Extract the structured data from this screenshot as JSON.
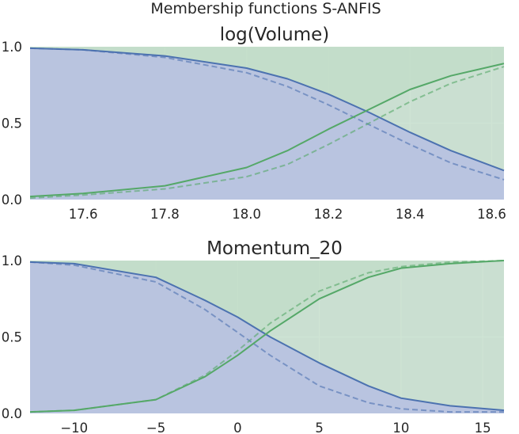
{
  "figure_title": "Membership functions S-ANFIS",
  "colors": {
    "background": "#eaeaf2",
    "grid": "#ffffff",
    "blue": "#4c72b0",
    "green": "#55a868",
    "blue_fill": "#b8c3e0",
    "green_fill": "#bfdbc5"
  },
  "chart_data": [
    {
      "type": "line",
      "title": "log(Volume)",
      "xlabel": "",
      "ylabel": "",
      "xlim": [
        17.47,
        18.63
      ],
      "ylim": [
        0.0,
        1.0
      ],
      "xticks": [
        17.6,
        17.8,
        18.0,
        18.2,
        18.4,
        18.6
      ],
      "xtick_labels": [
        "17.6",
        "17.8",
        "18.0",
        "18.2",
        "18.4",
        "18.6"
      ],
      "yticks": [
        0.0,
        0.5,
        1.0
      ],
      "ytick_labels": [
        "0.0",
        "0.5",
        "1.0"
      ],
      "grid": true,
      "legend": "none",
      "shaded_areas": true,
      "series": [
        {
          "color": "blue",
          "style": "solid",
          "shape": "decreasing",
          "x": [
            17.47,
            17.6,
            17.8,
            18.0,
            18.1,
            18.2,
            18.3,
            18.4,
            18.5,
            18.63
          ],
          "y": [
            0.99,
            0.98,
            0.94,
            0.86,
            0.79,
            0.69,
            0.57,
            0.44,
            0.32,
            0.19
          ]
        },
        {
          "color": "blue",
          "style": "dashed",
          "shape": "decreasing",
          "x": [
            17.47,
            17.6,
            17.8,
            18.0,
            18.1,
            18.2,
            18.3,
            18.4,
            18.5,
            18.63
          ],
          "y": [
            0.99,
            0.98,
            0.93,
            0.83,
            0.74,
            0.62,
            0.49,
            0.36,
            0.24,
            0.13
          ]
        },
        {
          "color": "green",
          "style": "solid",
          "shape": "increasing",
          "x": [
            17.47,
            17.6,
            17.8,
            18.0,
            18.1,
            18.2,
            18.3,
            18.4,
            18.5,
            18.63
          ],
          "y": [
            0.02,
            0.04,
            0.09,
            0.21,
            0.32,
            0.46,
            0.59,
            0.72,
            0.81,
            0.89
          ]
        },
        {
          "color": "green",
          "style": "dashed",
          "shape": "increasing",
          "x": [
            17.47,
            17.6,
            17.8,
            18.0,
            18.1,
            18.2,
            18.3,
            18.4,
            18.5,
            18.63
          ],
          "y": [
            0.01,
            0.03,
            0.07,
            0.15,
            0.23,
            0.36,
            0.5,
            0.64,
            0.76,
            0.87
          ]
        }
      ]
    },
    {
      "type": "line",
      "title": "Momentum_20",
      "xlabel": "",
      "ylabel": "",
      "xlim": [
        -12.7,
        16.3
      ],
      "ylim": [
        0.0,
        1.0
      ],
      "xticks": [
        -10,
        -5,
        0,
        5,
        10,
        15
      ],
      "xtick_labels": [
        "−10",
        "−5",
        "0",
        "5",
        "10",
        "15"
      ],
      "yticks": [
        0.0,
        0.5,
        1.0
      ],
      "ytick_labels": [
        "0.0",
        "0.5",
        "1.0"
      ],
      "grid": true,
      "legend": "none",
      "shaded_areas": true,
      "series": [
        {
          "color": "blue",
          "style": "solid",
          "shape": "decreasing",
          "x": [
            -12.7,
            -10,
            -5,
            -2,
            0,
            2,
            5,
            8,
            10,
            13,
            16.3
          ],
          "y": [
            0.99,
            0.98,
            0.89,
            0.74,
            0.63,
            0.5,
            0.33,
            0.18,
            0.1,
            0.05,
            0.02
          ]
        },
        {
          "color": "blue",
          "style": "dashed",
          "shape": "decreasing",
          "x": [
            -12.7,
            -10,
            -5,
            -2,
            0,
            2,
            5,
            8,
            10,
            13,
            16.3
          ],
          "y": [
            0.99,
            0.97,
            0.86,
            0.68,
            0.53,
            0.38,
            0.18,
            0.07,
            0.03,
            0.01,
            0.01
          ]
        },
        {
          "color": "green",
          "style": "solid",
          "shape": "increasing",
          "x": [
            -12.7,
            -10,
            -5,
            -2,
            0,
            2,
            5,
            8,
            10,
            13,
            16.3
          ],
          "y": [
            0.01,
            0.02,
            0.09,
            0.24,
            0.38,
            0.54,
            0.75,
            0.89,
            0.95,
            0.98,
            1.0
          ]
        },
        {
          "color": "green",
          "style": "dashed",
          "shape": "increasing",
          "x": [
            -12.7,
            -10,
            -5,
            -2,
            0,
            2,
            5,
            8,
            10,
            13,
            16.3
          ],
          "y": [
            0.01,
            0.02,
            0.09,
            0.25,
            0.41,
            0.59,
            0.8,
            0.92,
            0.96,
            0.99,
            1.0
          ]
        }
      ]
    }
  ]
}
